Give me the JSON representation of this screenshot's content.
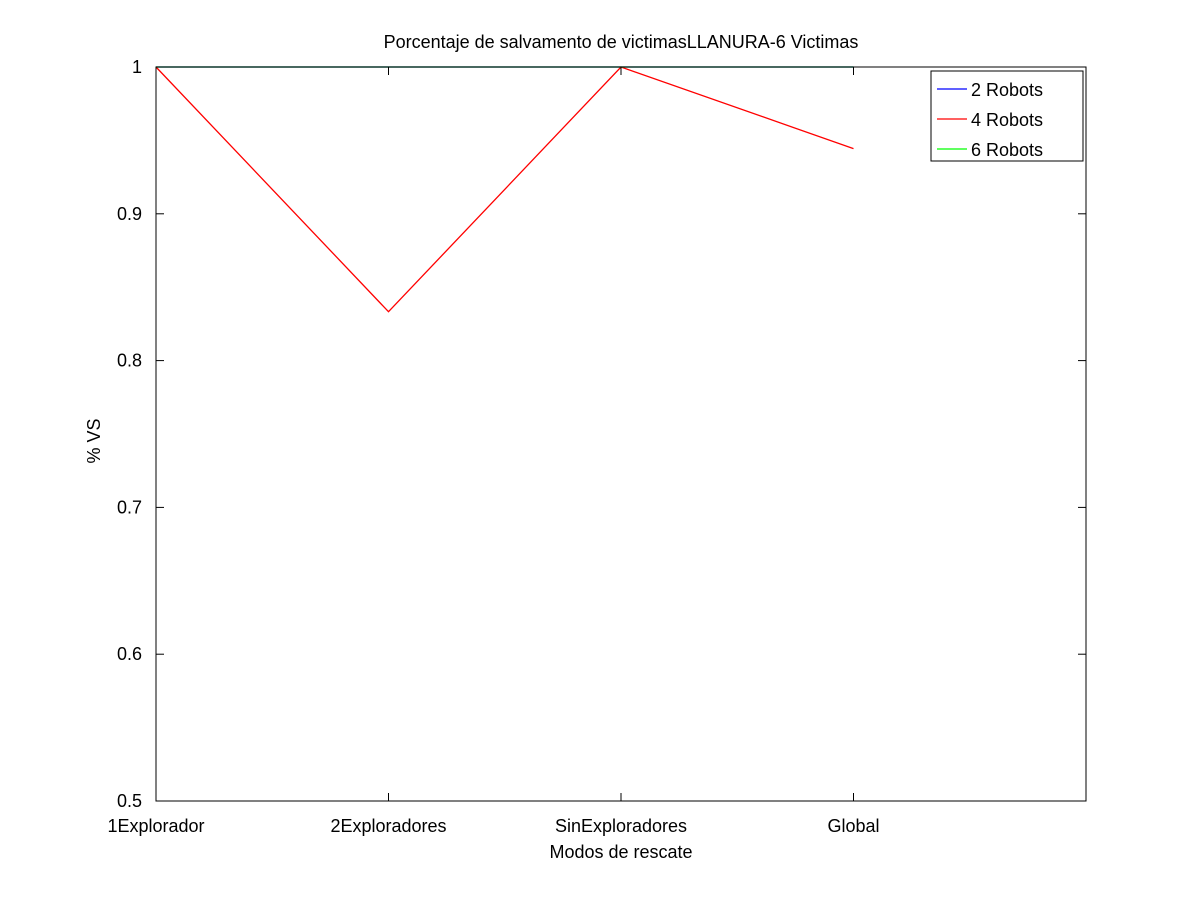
{
  "chart_data": {
    "type": "line",
    "title": "Porcentaje de salvamento de victimasLLANURA-6 Victimas",
    "xlabel": "Modos de rescate",
    "ylabel": "% VS",
    "categories": [
      "1Explorador",
      "2Exploradores",
      "SinExploradores",
      "Global"
    ],
    "xlim": [
      1,
      5
    ],
    "ylim": [
      0.5,
      1.0
    ],
    "yticks": [
      0.5,
      0.6,
      0.7,
      0.8,
      0.9,
      1
    ],
    "ytick_labels": [
      "0.5",
      "0.6",
      "0.7",
      "0.8",
      "0.9",
      "1"
    ],
    "grid": false,
    "legend_position": "top-right",
    "series": [
      {
        "name": "2 Robots",
        "color": "#0000ff",
        "values": [
          1.0,
          1.0,
          1.0,
          1.0
        ]
      },
      {
        "name": "4 Robots",
        "color": "#ff0000",
        "values": [
          1.0,
          0.8333,
          1.0,
          0.9444
        ]
      },
      {
        "name": "6 Robots",
        "color": "#00ff00",
        "values": [
          1.0,
          1.0,
          1.0,
          1.0
        ]
      }
    ]
  }
}
